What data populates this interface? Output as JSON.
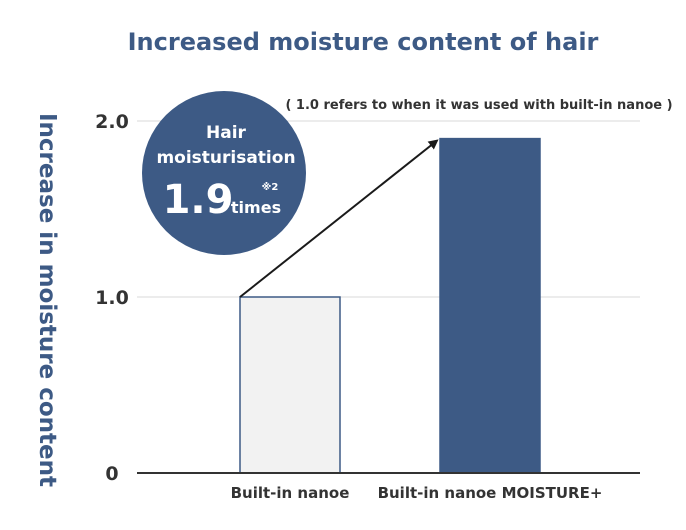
{
  "chart_data": {
    "type": "bar",
    "title": "Increased moisture content of hair",
    "ylabel": "Increase in moisture content",
    "xlabel": "",
    "ylim": [
      0,
      2.0
    ],
    "yticks": [
      "0",
      "1.0",
      "2.0"
    ],
    "grid": true,
    "categories": [
      "Built-in nanoe",
      "Built-in nanoe MOISTURE+"
    ],
    "values": [
      1.0,
      1.9
    ],
    "bar_colors": [
      "#f2f2f2",
      "#3d5a85"
    ],
    "note": "( 1.0 refers to when it was used with built-in nanoe )",
    "badge": {
      "line1": "Hair",
      "line2": "moisturisation",
      "value": "1.9",
      "unit": "times",
      "footnote": "※2",
      "color": "#3d5a85"
    }
  }
}
